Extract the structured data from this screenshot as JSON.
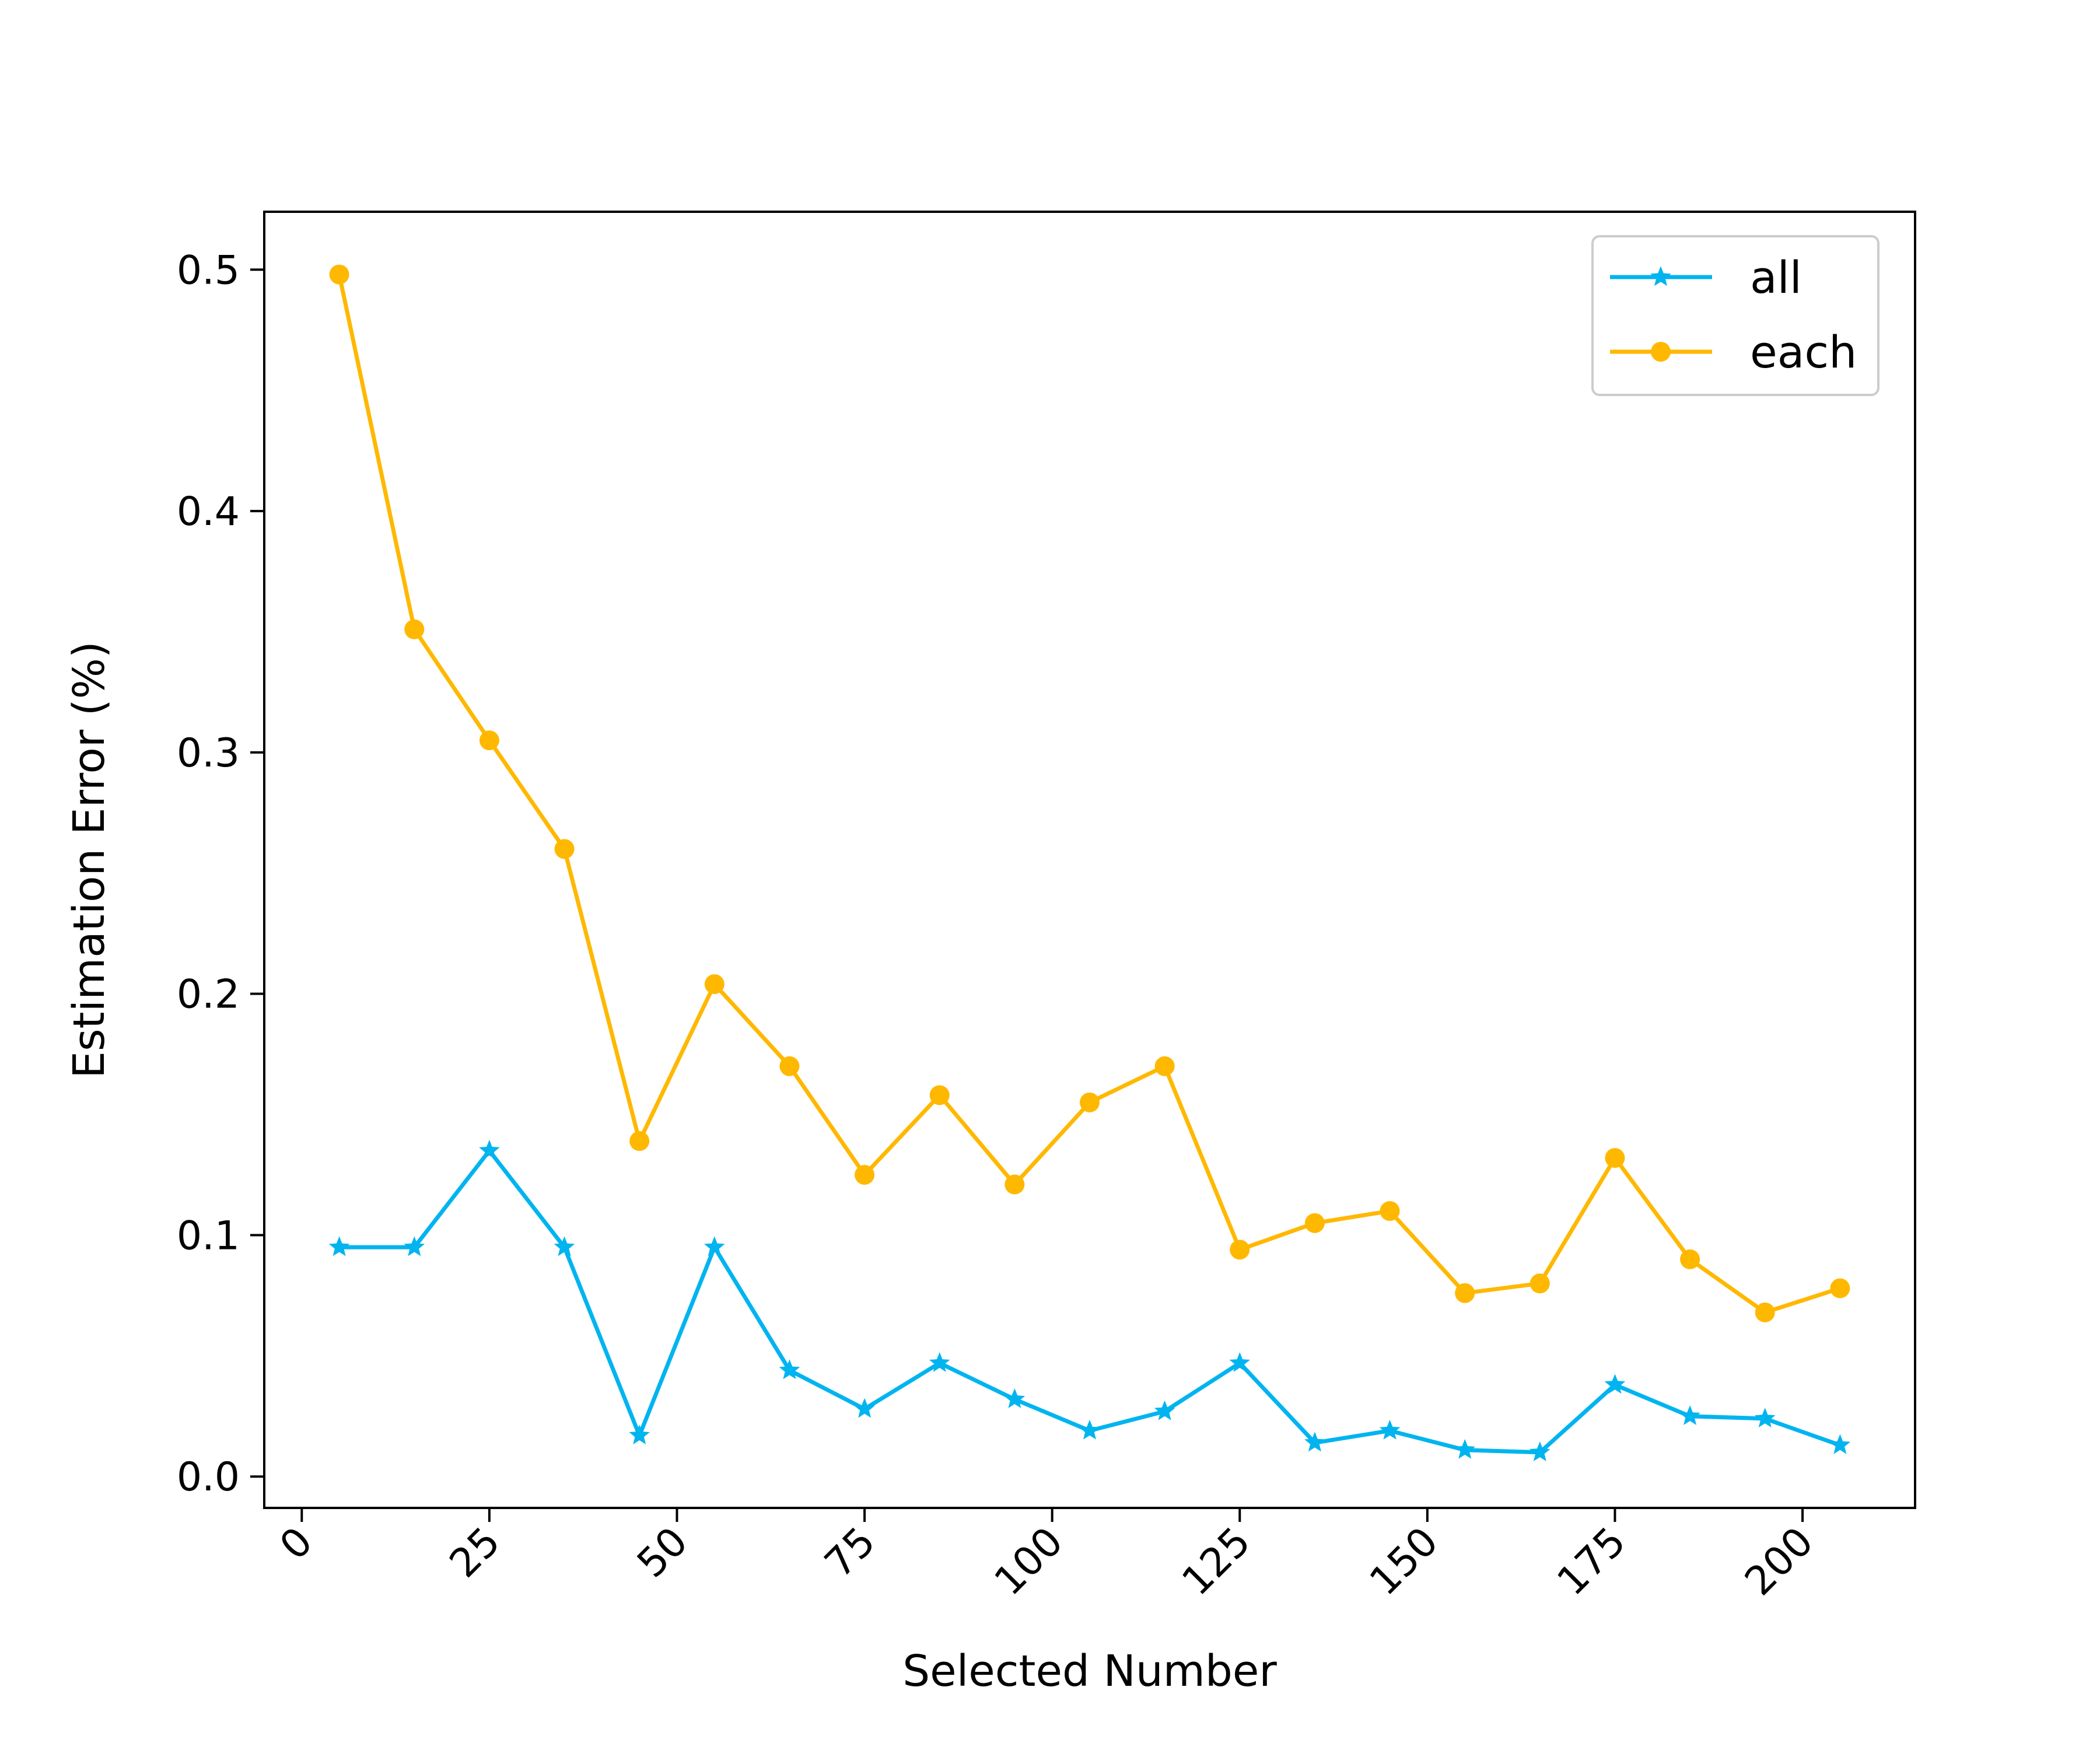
{
  "chart_data": {
    "type": "line",
    "title": "",
    "xlabel": "Selected Number",
    "ylabel": "Estimation Error (%)",
    "x": [
      5,
      15,
      25,
      35,
      45,
      55,
      65,
      75,
      85,
      95,
      105,
      115,
      125,
      135,
      145,
      155,
      165,
      175,
      185,
      195,
      205
    ],
    "xlim": [
      -5,
      215
    ],
    "ylim": [
      -0.013,
      0.524
    ],
    "xticks": [
      0,
      25,
      50,
      75,
      100,
      125,
      150,
      175,
      200
    ],
    "xtick_labels": [
      "0",
      "25",
      "50",
      "75",
      "100",
      "125",
      "150",
      "175",
      "200"
    ],
    "yticks": [
      0.0,
      0.1,
      0.2,
      0.3,
      0.4,
      0.5
    ],
    "ytick_labels": [
      "0.0",
      "0.1",
      "0.2",
      "0.3",
      "0.4",
      "0.5"
    ],
    "grid": false,
    "legend": "top-right",
    "series": [
      {
        "name": "all",
        "color": "#00b4f0",
        "marker": "star",
        "values": [
          0.095,
          0.095,
          0.135,
          0.095,
          0.017,
          0.095,
          0.044,
          0.028,
          0.047,
          0.032,
          0.019,
          0.027,
          0.047,
          0.014,
          0.019,
          0.011,
          0.01,
          0.038,
          0.025,
          0.024,
          0.013
        ]
      },
      {
        "name": "each",
        "color": "#ffb800",
        "marker": "circle",
        "values": [
          0.498,
          0.351,
          0.305,
          0.26,
          0.139,
          0.204,
          0.17,
          0.125,
          0.158,
          0.121,
          0.155,
          0.17,
          0.094,
          0.105,
          0.11,
          0.076,
          0.08,
          0.132,
          0.09,
          0.068,
          0.078
        ]
      }
    ]
  }
}
